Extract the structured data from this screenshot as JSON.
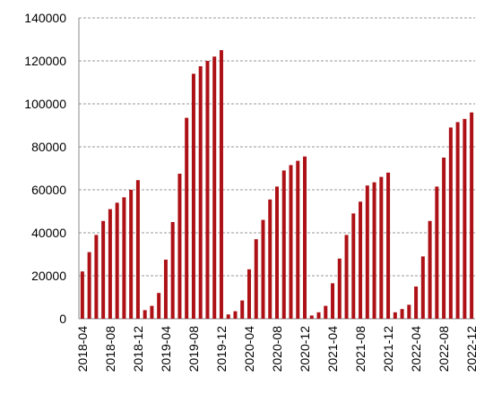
{
  "chart_data": {
    "type": "bar",
    "categories": [
      "2018-04",
      null,
      null,
      null,
      "2018-08",
      null,
      null,
      null,
      "2018-12",
      null,
      null,
      null,
      "2019-04",
      null,
      null,
      null,
      "2019-08",
      null,
      null,
      null,
      "2019-12",
      null,
      null,
      null,
      "2020-04",
      null,
      null,
      null,
      "2020-08",
      null,
      null,
      null,
      "2020-12",
      null,
      null,
      null,
      "2021-04",
      null,
      null,
      null,
      "2021-08",
      null,
      null,
      null,
      "2021-12",
      null,
      null,
      null,
      "2022-04",
      null,
      null,
      null,
      "2022-08",
      null,
      null,
      null,
      "2022-12"
    ],
    "values": [
      22000,
      31000,
      39000,
      45500,
      51000,
      54000,
      56500,
      60000,
      64500,
      4000,
      6000,
      12000,
      27500,
      45000,
      67500,
      93500,
      114000,
      117500,
      120000,
      122000,
      125000,
      2000,
      3500,
      8500,
      23000,
      37000,
      46000,
      55500,
      61500,
      69000,
      71500,
      73500,
      75500,
      1500,
      3000,
      6000,
      16500,
      28000,
      39000,
      49000,
      54500,
      62000,
      63500,
      66000,
      68000,
      3000,
      4500,
      6500,
      15000,
      29000,
      45500,
      61500,
      75000,
      89000,
      91500,
      93000,
      96000
    ],
    "color": "#ad1116",
    "ylim": [
      0,
      140000
    ],
    "yticks": [
      0,
      20000,
      40000,
      60000,
      80000,
      100000,
      120000,
      140000
    ],
    "grid": true
  }
}
